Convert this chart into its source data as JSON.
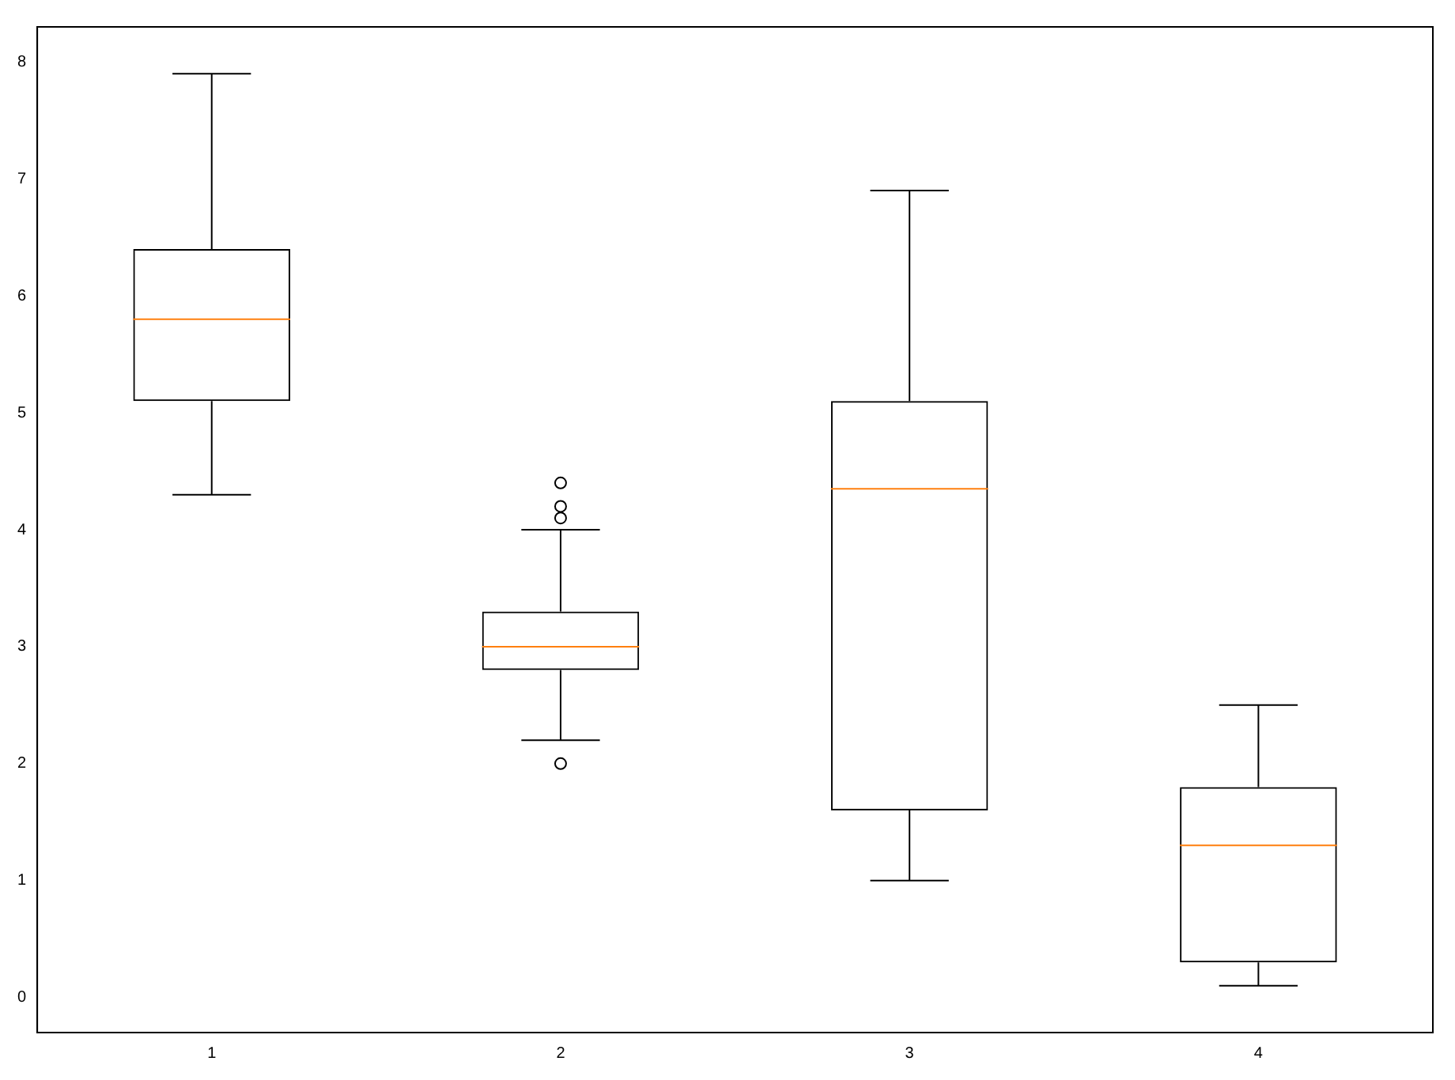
{
  "chart_data": {
    "type": "box",
    "categories": [
      "1",
      "2",
      "3",
      "4"
    ],
    "color": "#000000",
    "boxes": [
      {
        "low": 4.3,
        "q1": 5.1,
        "median": 5.8,
        "q3": 6.4,
        "high": 7.9
      },
      {
        "low": 2.2,
        "q1": 2.8,
        "median": 3.0,
        "q3": 3.3,
        "high": 4.0,
        "outliers": [
          4.4,
          4.1,
          4.2,
          2.0
        ]
      },
      {
        "low": 1.0,
        "q1": 1.6,
        "median": 4.35,
        "q3": 5.1,
        "high": 6.9
      },
      {
        "low": 0.1,
        "q1": 0.3,
        "median": 1.3,
        "q3": 1.8,
        "high": 2.5
      }
    ],
    "ylim": [
      -0.3,
      8.3
    ],
    "yticks": [
      0,
      1,
      2,
      3,
      4,
      5,
      6,
      7,
      8
    ],
    "grid": false,
    "legend": false
  }
}
